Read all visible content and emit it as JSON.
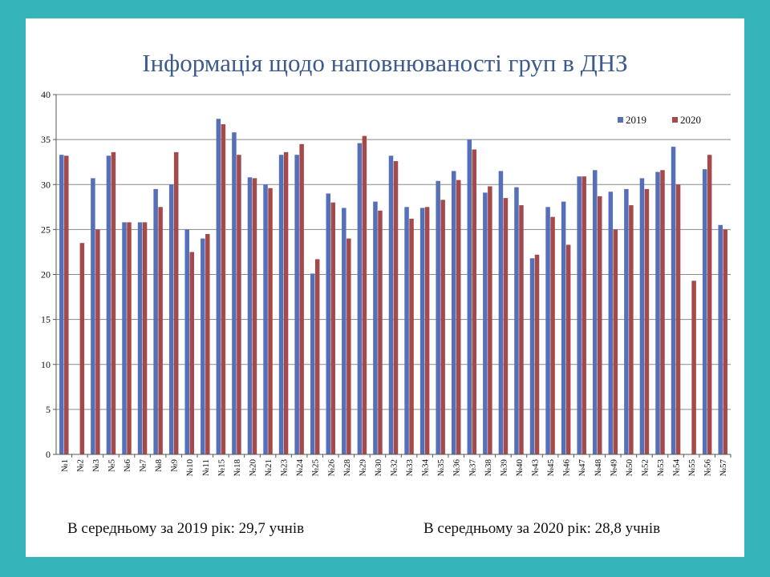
{
  "slide": {
    "title": "Інформація щодо наповнюваності груп в ДНЗ",
    "avg_2019": "В середньому за 2019 рік: 29,7 учнів",
    "avg_2020": "В середньому за 2020 рік: 28,8 учнів"
  },
  "colors": {
    "background": "#35b5b9",
    "series_2019": "#5570b8",
    "series_2020": "#a54a4a",
    "title": "#3d5a8f"
  },
  "chart_data": {
    "type": "bar",
    "title": "Інформація щодо наповнюваності груп в ДНЗ",
    "xlabel": "",
    "ylabel": "",
    "ylim": [
      0,
      40
    ],
    "yticks": [
      0,
      5,
      10,
      15,
      20,
      25,
      30,
      35,
      40
    ],
    "grid": true,
    "legend_position": "top-right",
    "categories": [
      "№1",
      "№2",
      "№3",
      "№5",
      "№6",
      "№7",
      "№8",
      "№9",
      "№10",
      "№11",
      "№15",
      "№18",
      "№20",
      "№21",
      "№23",
      "№24",
      "№25",
      "№26",
      "№28",
      "№29",
      "№30",
      "№32",
      "№33",
      "№34",
      "№35",
      "№36",
      "№37",
      "№38",
      "№39",
      "№40",
      "№43",
      "№45",
      "№46",
      "№47",
      "№48",
      "№49",
      "№50",
      "№52",
      "№53",
      "№54",
      "№55",
      "№56",
      "№57"
    ],
    "series": [
      {
        "name": "2019",
        "color": "#5570b8",
        "values": [
          33.3,
          0,
          30.7,
          33.2,
          25.8,
          25.8,
          29.5,
          30,
          25,
          24,
          37.3,
          35.8,
          30.8,
          30,
          33.3,
          33.3,
          20.1,
          29,
          27.4,
          34.6,
          28.1,
          33.2,
          27.5,
          27.4,
          30.4,
          31.5,
          35,
          29.1,
          31.5,
          29.7,
          21.8,
          27.5,
          28.1,
          30.9,
          31.6,
          29.2,
          29.5,
          30.7,
          31.4,
          34.2,
          0,
          31.7,
          25.5
        ]
      },
      {
        "name": "2020",
        "color": "#a54a4a",
        "values": [
          33.2,
          23.5,
          25,
          33.6,
          25.8,
          25.8,
          27.5,
          33.6,
          22.5,
          24.5,
          36.7,
          33.3,
          30.7,
          29.6,
          33.6,
          34.5,
          21.7,
          28,
          24,
          35.4,
          27.1,
          32.6,
          26.2,
          27.5,
          28.3,
          30.5,
          33.9,
          29.8,
          28.5,
          27.7,
          22.2,
          26.4,
          23.3,
          30.9,
          28.7,
          25,
          27.7,
          29.5,
          31.6,
          30,
          19.3,
          33.3,
          25
        ]
      }
    ]
  }
}
